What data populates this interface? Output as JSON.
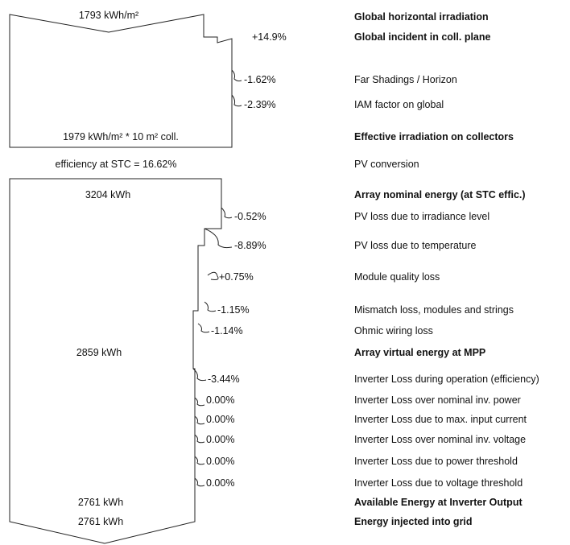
{
  "irradiation": {
    "ghi_value": "1793 kWh/m²",
    "ghi_label": "Global horizontal irradiation",
    "incident_pct": "+14.9%",
    "incident_label": "Global incident in coll. plane",
    "far_shading_pct": "-1.62%",
    "far_shading_label": "Far Shadings / Horizon",
    "iam_pct": "-2.39%",
    "iam_label": "IAM factor on global",
    "effective_value": "1979 kWh/m² * 10 m² coll.",
    "effective_label": "Effective irradiation on collectors"
  },
  "conversion": {
    "efficiency_text": "efficiency at STC = 16.62%",
    "label": "PV conversion"
  },
  "array": {
    "nominal_value": "3204 kWh",
    "nominal_label": "Array nominal energy (at STC effic.)",
    "irradiance_pct": "-0.52%",
    "irradiance_label": "PV loss due to irradiance level",
    "temperature_pct": "-8.89%",
    "temperature_label": "PV loss due to temperature",
    "quality_pct": "+0.75%",
    "quality_label": "Module quality loss",
    "mismatch_pct": "-1.15%",
    "mismatch_label": "Mismatch loss, modules and strings",
    "ohmic_pct": "-1.14%",
    "ohmic_label": "Ohmic wiring loss",
    "mpp_value": "2859 kWh",
    "mpp_label": "Array virtual energy at MPP"
  },
  "inverter": {
    "operation_pct": "-3.44%",
    "operation_label": "Inverter Loss during operation (efficiency)",
    "power_pct": "0.00%",
    "power_label": "Inverter Loss over nominal inv. power",
    "current_pct": "0.00%",
    "current_label": "Inverter Loss due to max. input current",
    "voltage_pct": "0.00%",
    "voltage_label": "Inverter Loss over nominal inv. voltage",
    "power_threshold_pct": "0.00%",
    "power_threshold_label": "Inverter Loss due to power threshold",
    "voltage_threshold_pct": "0.00%",
    "voltage_threshold_label": "Inverter Loss due to voltage threshold",
    "available_value": "2761 kWh",
    "available_label": "Available Energy at Inverter Output",
    "grid_value": "2761 kWh",
    "grid_label": "Energy injected into grid"
  }
}
